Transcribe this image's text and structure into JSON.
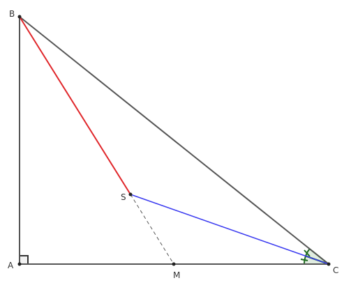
{
  "points": [
    {
      "label": "A"
    },
    {
      "label": "B"
    },
    {
      "label": "C"
    },
    {
      "label": "S"
    },
    {
      "label": "M"
    }
  ]
}
